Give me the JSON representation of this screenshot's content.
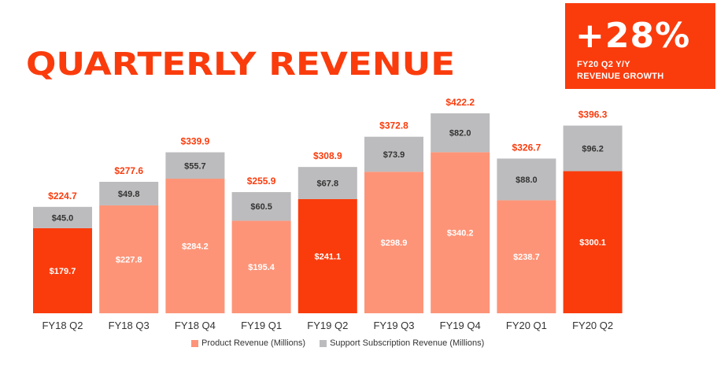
{
  "title": "QUARTERLY REVENUE",
  "badge": {
    "value": "+28%",
    "caption_line1": "FY20 Q2 Y/Y",
    "caption_line2": "REVENUE GROWTH"
  },
  "colors": {
    "accent": "#fa3c0d",
    "product_light": "#fd9478",
    "product_highlight": "#fa3c0d",
    "support": "#bcbcbe",
    "total_label": "#fa3c0d"
  },
  "chart_data": {
    "type": "bar",
    "stacked": true,
    "categories": [
      "FY18 Q2",
      "FY18 Q3",
      "FY18 Q4",
      "FY19 Q1",
      "FY19 Q2",
      "FY19 Q3",
      "FY19 Q4",
      "FY20 Q1",
      "FY20 Q2"
    ],
    "series": [
      {
        "name": "Product Revenue (Millions)",
        "values": [
          179.7,
          227.8,
          284.2,
          195.4,
          241.1,
          298.9,
          340.2,
          238.7,
          300.1
        ],
        "labels": [
          "$179.7",
          "$227.8",
          "$284.2",
          "$195.4",
          "$241.1",
          "$298.9",
          "$340.2",
          "$238.7",
          "$300.1"
        ]
      },
      {
        "name": "Support Subscription Revenue (Millions)",
        "values": [
          45.0,
          49.8,
          55.7,
          60.5,
          67.8,
          73.9,
          82.0,
          88.0,
          96.2
        ],
        "labels": [
          "$45.0",
          "$49.8",
          "$55.7",
          "$60.5",
          "$67.8",
          "$73.9",
          "$82.0",
          "$88.0",
          "$96.2"
        ]
      }
    ],
    "totals": [
      224.7,
      277.6,
      339.9,
      255.9,
      308.9,
      372.8,
      422.2,
      326.7,
      396.3
    ],
    "total_labels": [
      "$224.7",
      "$277.6",
      "$339.9",
      "$255.9",
      "$308.9",
      "$372.8",
      "$422.2",
      "$326.7",
      "$396.3"
    ],
    "highlighted_quarters": [
      "FY18 Q2",
      "FY19 Q2",
      "FY20 Q2"
    ],
    "ylim": [
      0,
      422.2
    ],
    "grid": false,
    "legend_position": "bottom"
  }
}
